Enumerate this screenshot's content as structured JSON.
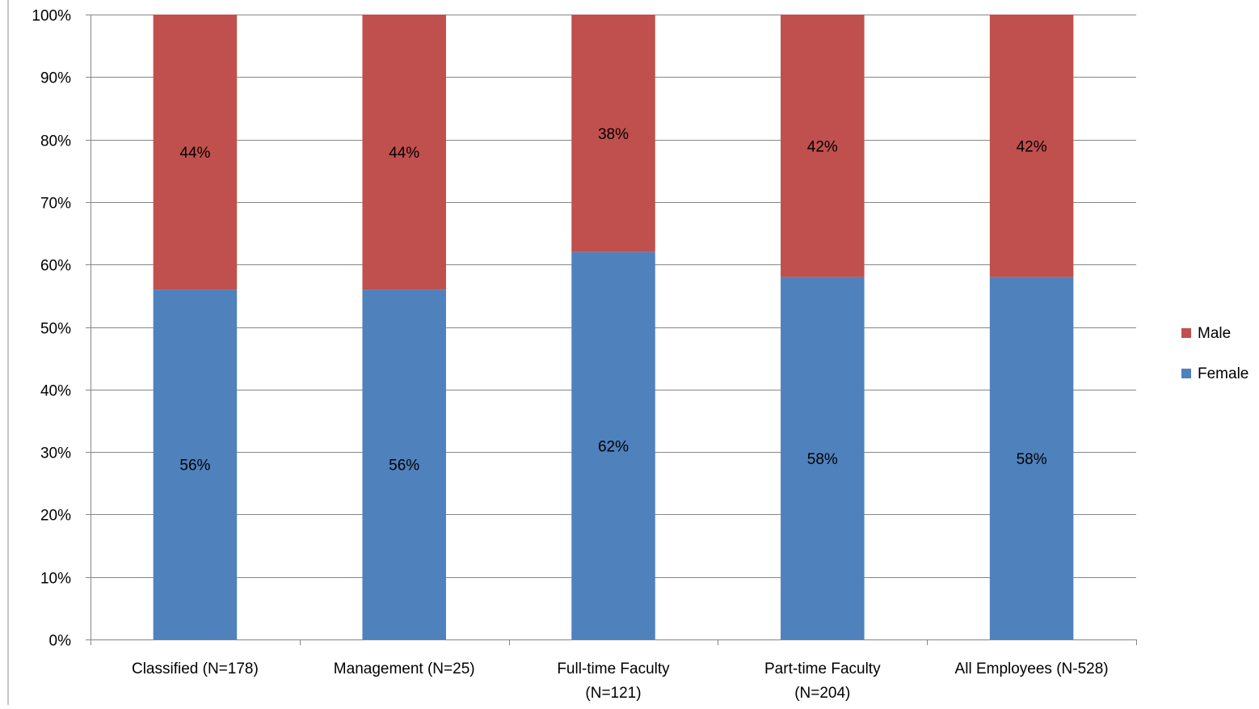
{
  "chart_data": {
    "type": "bar",
    "stacked": true,
    "categories": [
      [
        "Classified (N=178)"
      ],
      [
        "Management (N=25)"
      ],
      [
        "Full-time Faculty",
        "(N=121)"
      ],
      [
        "Part-time Faculty",
        "(N=204)"
      ],
      [
        "All Employees (N-528)"
      ]
    ],
    "series": [
      {
        "name": "Female",
        "color": "#4F81BD",
        "values": [
          56,
          56,
          62,
          58,
          58
        ],
        "labels": [
          "56%",
          "56%",
          "62%",
          "58%",
          "58%"
        ]
      },
      {
        "name": "Male",
        "color": "#C0504D",
        "values": [
          44,
          44,
          38,
          42,
          42
        ],
        "labels": [
          "44%",
          "44%",
          "38%",
          "42%",
          "42%"
        ]
      }
    ],
    "ylim": [
      0,
      100
    ],
    "yticks": [
      "0%",
      "10%",
      "20%",
      "30%",
      "40%",
      "50%",
      "60%",
      "70%",
      "80%",
      "90%",
      "100%"
    ],
    "grid": true,
    "legend": {
      "position": "right",
      "entries": [
        "Male",
        "Female"
      ]
    },
    "title": "",
    "xlabel": "",
    "ylabel": ""
  }
}
